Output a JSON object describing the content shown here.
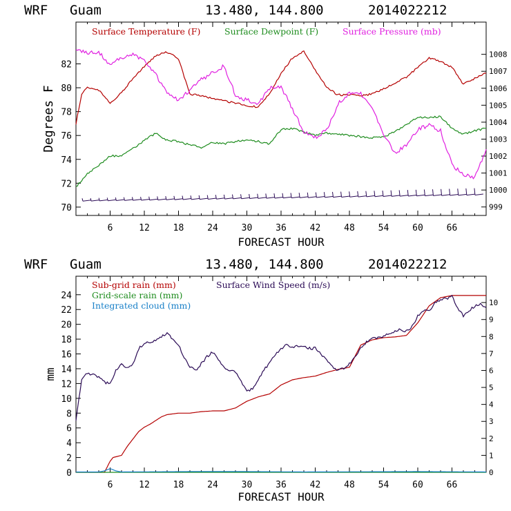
{
  "header": {
    "model": "WRF",
    "location": "Guam",
    "coords": "13.480, 144.800",
    "init_time": "2014022212"
  },
  "colors": {
    "temperature": "#b40000",
    "dewpoint": "#1e8c1e",
    "pressure": "#e020e0",
    "wind": "#2a0a55",
    "subgrid_rain": "#b40000",
    "grid_rain": "#1e8c1e",
    "cloud": "#1a80c8",
    "barbs": "#2a0a55"
  },
  "chart_data": [
    {
      "type": "line",
      "xlabel": "FORECAST HOUR",
      "ylabel": "Degrees F",
      "xticks": [
        "6",
        "12",
        "18",
        "24",
        "30",
        "36",
        "42",
        "48",
        "54",
        "60",
        "66"
      ],
      "xlim": [
        0,
        72
      ],
      "ylim": [
        69.3,
        85.5
      ],
      "yticks": [
        "70",
        "72",
        "74",
        "76",
        "78",
        "80",
        "82"
      ],
      "y2lim": [
        998.5,
        1009.9
      ],
      "y2ticks": [
        "999",
        "1000",
        "1001",
        "1002",
        "1003",
        "1004",
        "1005",
        "1006",
        "1007",
        "1008"
      ],
      "series": [
        {
          "name": "Surface Temperature (F)",
          "axis": "left",
          "x": [
            0,
            1,
            2,
            4,
            6,
            8,
            10,
            12,
            14,
            16,
            18,
            20,
            22,
            24,
            26,
            28,
            30,
            32,
            34,
            36,
            38,
            40,
            42,
            44,
            46,
            48,
            50,
            52,
            54,
            56,
            58,
            60,
            62,
            64,
            66,
            68,
            70,
            72
          ],
          "values": [
            77,
            79.5,
            80,
            79.8,
            78.7,
            79.6,
            80.8,
            81.8,
            82.7,
            83,
            82.4,
            79.5,
            79.3,
            79.1,
            78.9,
            78.7,
            78.5,
            78.4,
            79.5,
            81.2,
            82.5,
            83.1,
            81.5,
            80,
            79.4,
            79.4,
            79.3,
            79.5,
            79.9,
            80.4,
            80.9,
            81.7,
            82.5,
            82.2,
            81.7,
            80.3,
            80.8,
            81.2
          ]
        },
        {
          "name": "Surface Dewpoint (F)",
          "axis": "left",
          "x": [
            0,
            1,
            2,
            4,
            6,
            8,
            10,
            12,
            14,
            16,
            18,
            20,
            22,
            24,
            26,
            28,
            30,
            32,
            34,
            36,
            38,
            40,
            42,
            44,
            46,
            48,
            50,
            52,
            54,
            56,
            58,
            60,
            62,
            64,
            66,
            68,
            70,
            72
          ],
          "values": [
            71.7,
            72.2,
            72.8,
            73.5,
            74.3,
            74.3,
            74.9,
            75.6,
            76.2,
            75.6,
            75.5,
            75.2,
            75,
            75.4,
            75.3,
            75.5,
            75.6,
            75.5,
            75.3,
            76.5,
            76.6,
            76.3,
            76,
            76.2,
            76.1,
            76,
            75.9,
            75.8,
            75.9,
            76.3,
            76.9,
            77.5,
            77.5,
            77.6,
            76.6,
            76.1,
            76.4,
            76.6
          ]
        },
        {
          "name": "Surface Pressure (mb)",
          "axis": "right",
          "x": [
            0,
            2,
            4,
            6,
            8,
            10,
            12,
            14,
            16,
            18,
            20,
            22,
            24,
            26,
            28,
            30,
            32,
            34,
            36,
            38,
            40,
            42,
            44,
            46,
            48,
            50,
            52,
            54,
            56,
            58,
            60,
            62,
            64,
            66,
            68,
            70,
            72
          ],
          "values": [
            1008.2,
            1008.1,
            1008.1,
            1007.4,
            1007.8,
            1008,
            1007.6,
            1006.8,
            1005.7,
            1005.3,
            1005.9,
            1006.5,
            1006.9,
            1007.3,
            1005.6,
            1005.3,
            1005.1,
            1006,
            1006.1,
            1004.8,
            1003.4,
            1003.1,
            1003.5,
            1005.1,
            1005.7,
            1005.7,
            1004.8,
            1003.3,
            1002.2,
            1002.6,
            1003.6,
            1003.8,
            1003.5,
            1001.5,
            1000.9,
            1000.7,
            1002.4
          ]
        }
      ],
      "wind_barbs": {
        "count": 48
      }
    },
    {
      "type": "line",
      "xlabel": "FORECAST HOUR",
      "ylabel": "mm",
      "xticks": [
        "6",
        "12",
        "18",
        "24",
        "30",
        "36",
        "42",
        "48",
        "54",
        "60",
        "66"
      ],
      "xlim": [
        0,
        72
      ],
      "ylim": [
        0,
        26.5
      ],
      "yticks": [
        "0",
        "2",
        "4",
        "6",
        "8",
        "10",
        "12",
        "14",
        "16",
        "18",
        "20",
        "22",
        "24"
      ],
      "y2lim": [
        0,
        11.55
      ],
      "y2ticks": [
        "0",
        "1",
        "2",
        "3",
        "4",
        "5",
        "6",
        "7",
        "8",
        "9",
        "10"
      ],
      "series": [
        {
          "name": "Sub-grid rain (mm)",
          "axis": "left",
          "x": [
            0,
            5,
            6,
            6.5,
            7,
            8,
            9,
            10,
            11,
            12,
            13,
            14,
            15,
            16,
            18,
            20,
            22,
            24,
            26,
            28,
            30,
            32,
            34,
            36,
            38,
            40,
            42,
            44,
            46,
            48,
            50,
            52,
            54,
            56,
            58,
            60,
            62,
            64,
            66,
            68,
            70,
            72
          ],
          "values": [
            0,
            0,
            1.5,
            2,
            2.1,
            2.3,
            3.5,
            4.5,
            5.5,
            6.1,
            6.5,
            7,
            7.5,
            7.8,
            8,
            8,
            8.2,
            8.3,
            8.3,
            8.7,
            9.6,
            10.2,
            10.6,
            11.8,
            12.5,
            12.8,
            13,
            13.5,
            13.9,
            14.2,
            17.2,
            17.9,
            18.2,
            18.3,
            18.5,
            20.2,
            22.5,
            23.6,
            23.9,
            23.9,
            23.9,
            23.9
          ]
        },
        {
          "name": "Grid-scale rain (mm)",
          "axis": "left",
          "x": [
            0,
            72
          ],
          "values": [
            0,
            0
          ]
        },
        {
          "name": "Integrated cloud (mm)",
          "axis": "left",
          "x": [
            0,
            4,
            5,
            6,
            7,
            8,
            20,
            30,
            40,
            60,
            72
          ],
          "values": [
            0.05,
            0.05,
            0.2,
            0.5,
            0.2,
            0.05,
            0.1,
            0.1,
            0.05,
            0.1,
            0.05
          ]
        },
        {
          "name": "Surface Wind Speed (m/s)",
          "axis": "right",
          "x": [
            0,
            1,
            2,
            3,
            4,
            5,
            6,
            7,
            8,
            9,
            10,
            11,
            12,
            13,
            14,
            15,
            16,
            17,
            18,
            19,
            20,
            21,
            22,
            23,
            24,
            25,
            26,
            27,
            28,
            29,
            30,
            31,
            32,
            33,
            34,
            35,
            36,
            37,
            38,
            39,
            40,
            41,
            42,
            43,
            44,
            45,
            46,
            47,
            48,
            49,
            50,
            51,
            52,
            53,
            54,
            55,
            56,
            57,
            58,
            59,
            60,
            61,
            62,
            63,
            64,
            65,
            66,
            67,
            68,
            69,
            70,
            71,
            72
          ],
          "values": [
            3,
            5.5,
            5.8,
            5.8,
            5.6,
            5.3,
            5.2,
            6,
            6.4,
            6.1,
            6.4,
            7.3,
            7.6,
            7.7,
            7.8,
            8,
            8.2,
            7.8,
            7.5,
            6.8,
            6.2,
            6.0,
            6.4,
            6.8,
            7.1,
            6.6,
            6.2,
            6.0,
            5.9,
            5.3,
            4.8,
            4.9,
            5.5,
            6.0,
            6.5,
            6.9,
            7.3,
            7.5,
            7.4,
            7.4,
            7.4,
            7.3,
            7.3,
            7.0,
            6.6,
            6.2,
            6.0,
            6.1,
            6.4,
            6.8,
            7.3,
            7.7,
            7.9,
            7.9,
            8.0,
            8.2,
            8.3,
            8.4,
            8.3,
            8.6,
            9.2,
            9.5,
            9.5,
            10,
            10.2,
            10.2,
            10.4,
            9.7,
            9.2,
            9.5,
            9.8,
            9.9,
            9.7
          ]
        }
      ]
    }
  ]
}
